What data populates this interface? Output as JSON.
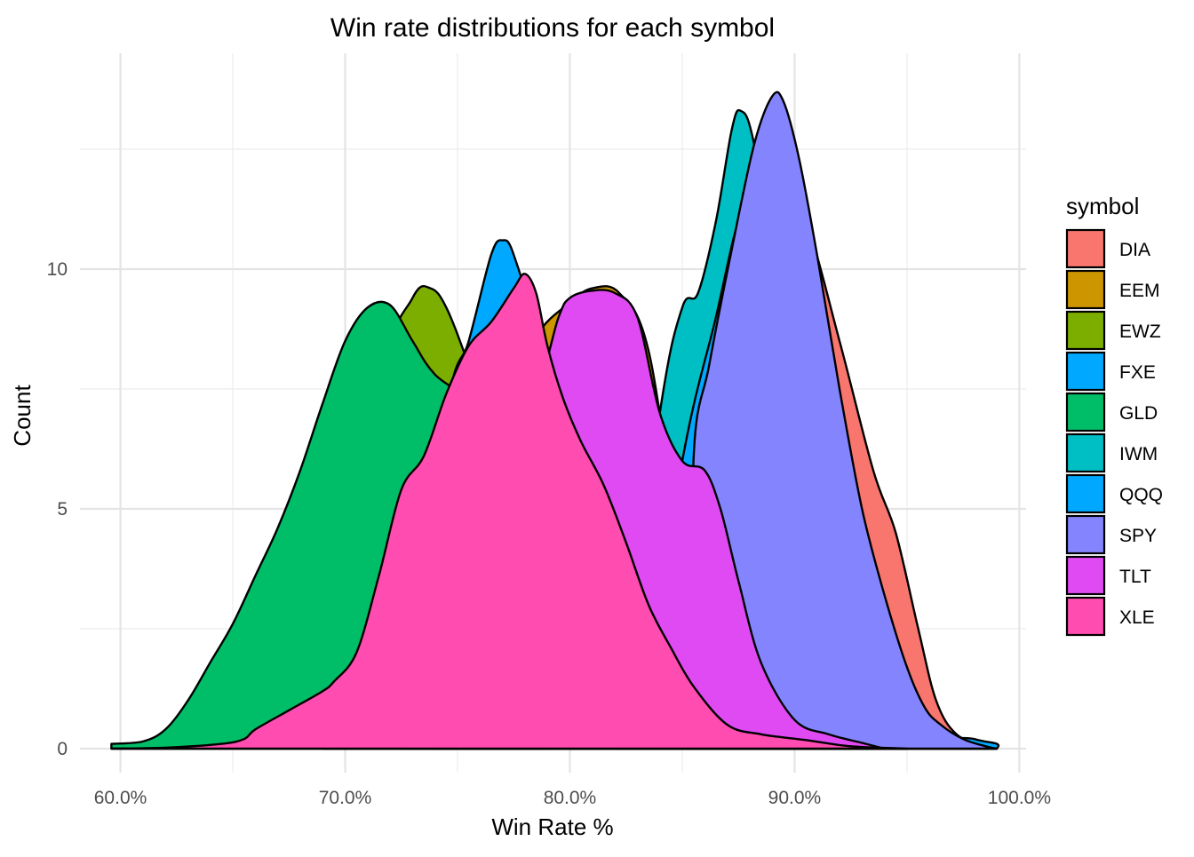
{
  "chart_data": {
    "type": "area",
    "subtype": "density",
    "title": "Win rate distributions for each symbol",
    "xlabel": "Win Rate %",
    "ylabel": "Count",
    "xlim": [
      0.582,
      1.003
    ],
    "ylim": [
      -0.5,
      14.5
    ],
    "x_ticks": [
      {
        "value": 0.6,
        "label": "60.0%"
      },
      {
        "value": 0.7,
        "label": "70.0%"
      },
      {
        "value": 0.8,
        "label": "80.0%"
      },
      {
        "value": 0.9,
        "label": "90.0%"
      },
      {
        "value": 1.0,
        "label": "100.0%"
      }
    ],
    "y_ticks": [
      {
        "value": 0,
        "label": "0"
      },
      {
        "value": 5,
        "label": "5"
      },
      {
        "value": 10,
        "label": "10"
      }
    ],
    "grid": true,
    "legend": {
      "title": "symbol",
      "position": "right"
    },
    "series": [
      {
        "name": "DIA",
        "color": "#F8766D",
        "points": [
          [
            0.83,
            0
          ],
          [
            0.86,
            5.5
          ],
          [
            0.875,
            10.0
          ],
          [
            0.89,
            12.2
          ],
          [
            0.905,
            11.0
          ],
          [
            0.92,
            8.5
          ],
          [
            0.935,
            5.8
          ],
          [
            0.945,
            4.5
          ],
          [
            0.955,
            2.5
          ],
          [
            0.963,
            1.0
          ],
          [
            0.972,
            0.3
          ],
          [
            0.985,
            0.05
          ],
          [
            0.99,
            0
          ]
        ]
      },
      {
        "name": "EEM",
        "color": "#CD9600",
        "points": [
          [
            0.74,
            0
          ],
          [
            0.77,
            7.0
          ],
          [
            0.785,
            8.6
          ],
          [
            0.8,
            9.3
          ],
          [
            0.81,
            9.6
          ],
          [
            0.822,
            9.5
          ],
          [
            0.835,
            8.3
          ],
          [
            0.85,
            4.0
          ],
          [
            0.87,
            0
          ]
        ]
      },
      {
        "name": "EWZ",
        "color": "#7CAE00",
        "points": [
          [
            0.69,
            0
          ],
          [
            0.715,
            7.5
          ],
          [
            0.73,
            9.4
          ],
          [
            0.738,
            9.6
          ],
          [
            0.745,
            9.2
          ],
          [
            0.755,
            8.0
          ],
          [
            0.77,
            6.0
          ],
          [
            0.79,
            0
          ]
        ]
      },
      {
        "name": "FXE",
        "color": "#00A9FF",
        "points": [
          [
            0.725,
            0
          ],
          [
            0.745,
            7.0
          ],
          [
            0.755,
            8.5
          ],
          [
            0.765,
            10.3
          ],
          [
            0.77,
            10.6
          ],
          [
            0.775,
            10.3
          ],
          [
            0.785,
            8.5
          ],
          [
            0.8,
            4.0
          ],
          [
            0.83,
            0
          ]
        ]
      },
      {
        "name": "GLD",
        "color": "#00BE67",
        "points": [
          [
            0.596,
            0.1
          ],
          [
            0.61,
            0.15
          ],
          [
            0.62,
            0.4
          ],
          [
            0.63,
            1.0
          ],
          [
            0.64,
            1.8
          ],
          [
            0.65,
            2.6
          ],
          [
            0.66,
            3.6
          ],
          [
            0.67,
            4.6
          ],
          [
            0.68,
            5.8
          ],
          [
            0.69,
            7.2
          ],
          [
            0.7,
            8.5
          ],
          [
            0.71,
            9.2
          ],
          [
            0.72,
            9.25
          ],
          [
            0.73,
            8.5
          ],
          [
            0.74,
            7.8
          ],
          [
            0.76,
            7.0
          ],
          [
            0.78,
            5.0
          ],
          [
            0.8,
            2.0
          ],
          [
            0.82,
            0.5
          ],
          [
            0.84,
            0
          ]
        ]
      },
      {
        "name": "IWM",
        "color": "#00BFC4",
        "points": [
          [
            0.82,
            0
          ],
          [
            0.84,
            7.0
          ],
          [
            0.85,
            9.2
          ],
          [
            0.857,
            9.5
          ],
          [
            0.865,
            11.0
          ],
          [
            0.872,
            12.9
          ],
          [
            0.876,
            13.3
          ],
          [
            0.882,
            12.6
          ],
          [
            0.895,
            9.0
          ],
          [
            0.91,
            5.0
          ],
          [
            0.93,
            1.0
          ],
          [
            0.95,
            0
          ]
        ]
      },
      {
        "name": "QQQ",
        "color": "#00A9FF",
        "points": [
          [
            0.83,
            0
          ],
          [
            0.85,
            6.0
          ],
          [
            0.865,
            9.0
          ],
          [
            0.875,
            11.0
          ],
          [
            0.883,
            11.5
          ],
          [
            0.895,
            10.2
          ],
          [
            0.91,
            6.5
          ],
          [
            0.93,
            2.5
          ],
          [
            0.96,
            0.5
          ],
          [
            0.98,
            0.2
          ],
          [
            0.99,
            0.1
          ],
          [
            0.99,
            0
          ]
        ]
      },
      {
        "name": "SPY",
        "color": "#8484FF",
        "points": [
          [
            0.855,
            0
          ],
          [
            0.855,
            6.0
          ],
          [
            0.862,
            8.0
          ],
          [
            0.872,
            10.4
          ],
          [
            0.882,
            12.6
          ],
          [
            0.89,
            13.6
          ],
          [
            0.895,
            13.5
          ],
          [
            0.902,
            12.3
          ],
          [
            0.91,
            10.3
          ],
          [
            0.92,
            7.5
          ],
          [
            0.93,
            5.0
          ],
          [
            0.94,
            3.2
          ],
          [
            0.95,
            1.7
          ],
          [
            0.958,
            0.85
          ],
          [
            0.965,
            0.5
          ],
          [
            0.975,
            0.2
          ],
          [
            0.985,
            0.05
          ],
          [
            0.99,
            0
          ]
        ]
      },
      {
        "name": "TLT",
        "color": "#E04AF2",
        "points": [
          [
            0.73,
            0
          ],
          [
            0.75,
            6.0
          ],
          [
            0.77,
            8.0
          ],
          [
            0.785,
            7.6
          ],
          [
            0.795,
            9.0
          ],
          [
            0.8,
            9.4
          ],
          [
            0.81,
            9.55
          ],
          [
            0.82,
            9.5
          ],
          [
            0.83,
            9.0
          ],
          [
            0.84,
            7.0
          ],
          [
            0.85,
            6.0
          ],
          [
            0.86,
            5.8
          ],
          [
            0.867,
            5.0
          ],
          [
            0.875,
            3.5
          ],
          [
            0.885,
            1.8
          ],
          [
            0.9,
            0.6
          ],
          [
            0.915,
            0.3
          ],
          [
            0.93,
            0.12
          ],
          [
            0.94,
            0
          ]
        ]
      },
      {
        "name": "XLE",
        "color": "#FF4CB0",
        "points": [
          [
            0.596,
            0
          ],
          [
            0.62,
            0.02
          ],
          [
            0.645,
            0.1
          ],
          [
            0.655,
            0.2
          ],
          [
            0.66,
            0.4
          ],
          [
            0.675,
            0.8
          ],
          [
            0.69,
            1.2
          ],
          [
            0.695,
            1.4
          ],
          [
            0.705,
            2.0
          ],
          [
            0.715,
            3.6
          ],
          [
            0.725,
            5.4
          ],
          [
            0.735,
            6.1
          ],
          [
            0.745,
            7.4
          ],
          [
            0.755,
            8.4
          ],
          [
            0.765,
            8.9
          ],
          [
            0.775,
            9.6
          ],
          [
            0.78,
            9.9
          ],
          [
            0.785,
            9.5
          ],
          [
            0.79,
            8.4
          ],
          [
            0.797,
            7.3
          ],
          [
            0.805,
            6.4
          ],
          [
            0.815,
            5.5
          ],
          [
            0.825,
            4.3
          ],
          [
            0.835,
            3.0
          ],
          [
            0.845,
            2.1
          ],
          [
            0.855,
            1.3
          ],
          [
            0.87,
            0.5
          ],
          [
            0.885,
            0.3
          ],
          [
            0.905,
            0.18
          ],
          [
            0.925,
            0.05
          ],
          [
            0.95,
            0
          ]
        ]
      }
    ],
    "draw_order": [
      "EWZ",
      "EEM",
      "FXE",
      "GLD",
      "DIA",
      "IWM",
      "QQQ",
      "SPY",
      "TLT",
      "XLE"
    ]
  }
}
